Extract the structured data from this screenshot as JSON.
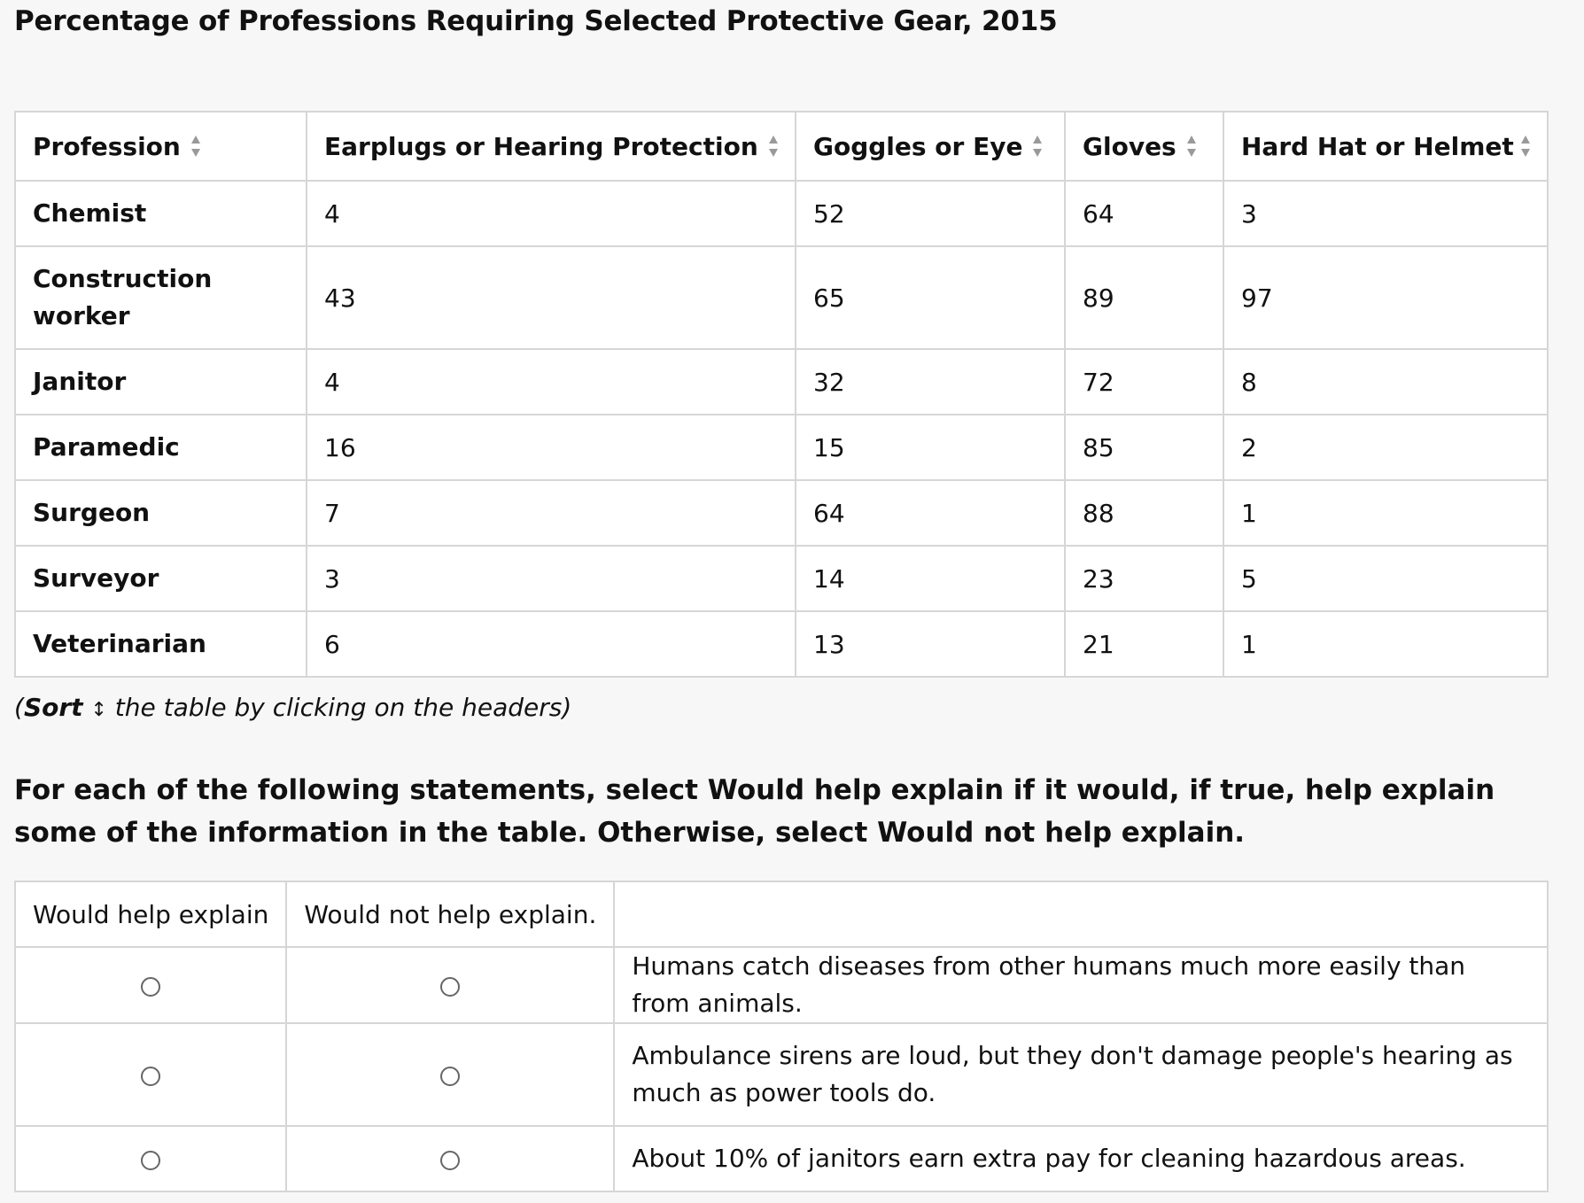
{
  "title": "Percentage of Professions Requiring Selected Protective Gear, 2015",
  "table": {
    "headers": [
      "Profession",
      "Earplugs or Hearing Protection",
      "Goggles or Eye",
      "Gloves",
      "Hard Hat or Helmet"
    ],
    "rows": [
      [
        "Chemist",
        "4",
        "52",
        "64",
        "3"
      ],
      [
        "Construction worker",
        "43",
        "65",
        "89",
        "97"
      ],
      [
        "Janitor",
        "4",
        "32",
        "72",
        "8"
      ],
      [
        "Paramedic",
        "16",
        "15",
        "85",
        "2"
      ],
      [
        "Surgeon",
        "7",
        "64",
        "88",
        "1"
      ],
      [
        "Surveyor",
        "3",
        "14",
        "23",
        "5"
      ],
      [
        "Veterinarian",
        "6",
        "13",
        "21",
        "1"
      ]
    ],
    "sort_icon": "sort-up-down-icon"
  },
  "note": {
    "open": "(",
    "bold": "Sort",
    "arrow": "↕",
    "rest": " the table by clicking on the headers)"
  },
  "instructions": "For each of the following statements, select Would help explain if it would, if true, help explain some of the information in the table. Otherwise, select Would not help explain.",
  "answers": {
    "col_help": "Would help explain",
    "col_not_help": "Would not help explain.",
    "statements": [
      "Humans catch diseases from other humans much more easily than from animals.",
      "Ambulance sirens are loud, but they don't damage people's hearing as much as power tools do.",
      "About 10% of janitors earn extra pay for cleaning hazardous areas."
    ]
  }
}
